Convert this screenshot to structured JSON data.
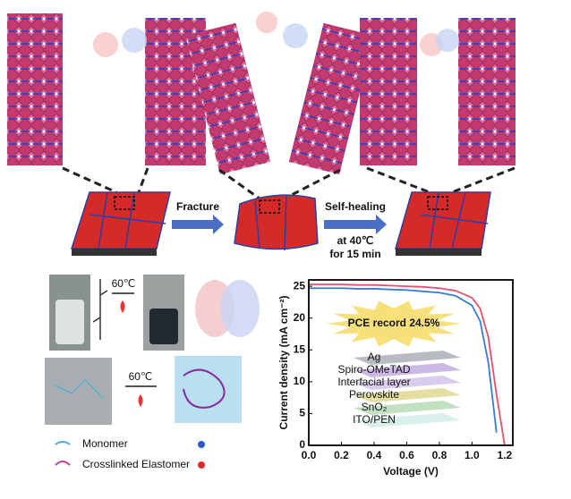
{
  "illustration": {
    "fracture_label": "Fracture",
    "healing_label": "Self-healing",
    "condition_temp": "at 40℃",
    "condition_time": "for 15 min"
  },
  "synthesis": {
    "temp_top": "60℃",
    "temp_bottom": "60℃",
    "legend": [
      {
        "label": "Monomer"
      },
      {
        "label": "Crosslinked Elastomer"
      }
    ]
  },
  "chart_data": {
    "type": "line",
    "xlabel": "Voltage (V)",
    "ylabel": "Current density (mA cm⁻²)",
    "annotation": "PCE record 24.5%",
    "device_layers": [
      "Ag",
      "Spiro-OMeTAD",
      "Interfacial layer",
      "Perovskite",
      "SnO₂",
      "ITO/PEN"
    ],
    "x": [
      0,
      0.1,
      0.2,
      0.3,
      0.4,
      0.5,
      0.6,
      0.7,
      0.8,
      0.9,
      1.0,
      1.05,
      1.1,
      1.15,
      1.2
    ],
    "series": [
      {
        "color": "#e8506a",
        "values": [
          25.3,
          25.3,
          25.3,
          25.2,
          25.2,
          25.1,
          25.0,
          24.9,
          24.7,
          24.3,
          23.2,
          21.5,
          17,
          8,
          0
        ]
      },
      {
        "color": "#3a7bd5",
        "values": [
          24.7,
          24.7,
          24.7,
          24.6,
          24.6,
          24.5,
          24.4,
          24.2,
          24.0,
          23.5,
          22,
          19.5,
          13,
          2,
          null
        ]
      }
    ],
    "xlim": [
      0,
      1.25
    ],
    "ylim": [
      0,
      26
    ],
    "xticks": [
      {
        "value": 0,
        "label": "0.0"
      },
      {
        "value": 0.2,
        "label": "0.2"
      },
      {
        "value": 0.4,
        "label": "0.4"
      },
      {
        "value": 0.6,
        "label": "0.6"
      },
      {
        "value": 0.8,
        "label": "0.8"
      },
      {
        "value": 1.0,
        "label": "1.0"
      },
      {
        "value": 1.2,
        "label": "1.2"
      }
    ],
    "yticks": [
      0,
      5,
      10,
      15,
      20,
      25
    ]
  }
}
